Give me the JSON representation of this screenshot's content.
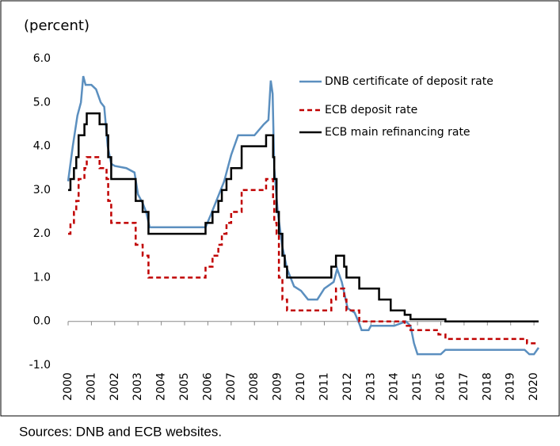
{
  "chart_data": {
    "type": "line",
    "step_series": [
      "ECB deposit rate",
      "ECB main refinancing rate"
    ],
    "y_label": "(percent)",
    "source": "Sources: DNB and ECB websites.",
    "legend": "upper right",
    "grid": false,
    "xlim": [
      2000,
      2020.2
    ],
    "xticks": [
      2000,
      2001,
      2002,
      2003,
      2004,
      2005,
      2006,
      2007,
      2008,
      2009,
      2010,
      2011,
      2012,
      2013,
      2014,
      2015,
      2016,
      2017,
      2018,
      2019,
      2020
    ],
    "ylim": [
      -1,
      6
    ],
    "yticks": [
      {
        "value": -1,
        "label": "-1.0"
      },
      {
        "value": 0,
        "label": "0.0"
      },
      {
        "value": 1,
        "label": "1.0"
      },
      {
        "value": 2,
        "label": "2.0"
      },
      {
        "value": 3,
        "label": "3.0"
      },
      {
        "value": 4,
        "label": "4.0"
      },
      {
        "value": 5,
        "label": "5.0"
      },
      {
        "value": 6,
        "label": "6.0"
      }
    ],
    "series": [
      {
        "name": "DNB certificate of deposit rate",
        "color": "#5b8fbf",
        "dash": "none",
        "x": [
          2000.0,
          2000.2,
          2000.4,
          2000.55,
          2000.65,
          2000.75,
          2001.0,
          2001.2,
          2001.4,
          2001.55,
          2001.7,
          2001.85,
          2002.0,
          2002.5,
          2002.85,
          2003.0,
          2003.2,
          2003.35,
          2003.5,
          2005.9,
          2006.1,
          2006.4,
          2006.7,
          2007.0,
          2007.3,
          2008.0,
          2008.4,
          2008.6,
          2008.7,
          2008.78,
          2008.85,
          2009.0,
          2009.2,
          2009.4,
          2009.7,
          2010.0,
          2010.3,
          2010.7,
          2011.0,
          2011.4,
          2011.55,
          2011.75,
          2012.0,
          2012.3,
          2012.5,
          2012.6,
          2012.9,
          2013.0,
          2014.0,
          2014.5,
          2014.7,
          2014.85,
          2015.0,
          2016.0,
          2016.2,
          2019.6,
          2019.8,
          2020.0,
          2020.2
        ],
        "values": [
          3.2,
          4.0,
          4.7,
          5.0,
          5.6,
          5.4,
          5.4,
          5.3,
          5.0,
          4.9,
          4.0,
          3.6,
          3.55,
          3.5,
          3.4,
          2.9,
          2.7,
          2.5,
          2.15,
          2.15,
          2.4,
          2.8,
          3.2,
          3.8,
          4.25,
          4.25,
          4.5,
          4.6,
          5.5,
          5.2,
          3.5,
          2.5,
          1.7,
          1.2,
          0.8,
          0.7,
          0.5,
          0.5,
          0.75,
          0.9,
          1.2,
          0.9,
          0.3,
          0.2,
          -0.05,
          -0.2,
          -0.2,
          -0.1,
          -0.1,
          0.0,
          -0.1,
          -0.5,
          -0.75,
          -0.75,
          -0.65,
          -0.65,
          -0.75,
          -0.75,
          -0.6
        ]
      },
      {
        "name": "ECB deposit rate",
        "color": "#c00000",
        "dash": "6 4",
        "x": [
          2000.0,
          2000.1,
          2000.25,
          2000.35,
          2000.45,
          2000.7,
          2000.8,
          2001.35,
          2001.65,
          2001.72,
          2001.85,
          2002.9,
          2003.2,
          2003.45,
          2005.9,
          2006.2,
          2006.45,
          2006.6,
          2006.8,
          2007.0,
          2007.45,
          2008.5,
          2008.8,
          2008.85,
          2008.95,
          2009.05,
          2009.2,
          2009.4,
          2011.3,
          2011.5,
          2011.85,
          2011.95,
          2012.5,
          2014.45,
          2014.7,
          2015.9,
          2016.2,
          2019.7,
          2020.2
        ],
        "values": [
          2.0,
          2.25,
          2.5,
          2.75,
          3.25,
          3.5,
          3.75,
          3.5,
          3.25,
          2.75,
          2.25,
          1.75,
          1.5,
          1.0,
          1.25,
          1.5,
          1.75,
          2.0,
          2.25,
          2.5,
          3.0,
          3.25,
          2.75,
          2.25,
          2.0,
          1.0,
          0.5,
          0.25,
          0.5,
          0.75,
          0.5,
          0.25,
          0.0,
          -0.1,
          -0.2,
          -0.3,
          -0.4,
          -0.5,
          -0.5
        ]
      },
      {
        "name": "ECB main refinancing rate",
        "color": "#000000",
        "dash": "none",
        "x": [
          2000.0,
          2000.1,
          2000.25,
          2000.35,
          2000.45,
          2000.7,
          2000.8,
          2001.35,
          2001.65,
          2001.72,
          2001.85,
          2002.9,
          2003.2,
          2003.45,
          2005.9,
          2006.2,
          2006.45,
          2006.6,
          2006.8,
          2007.0,
          2007.45,
          2008.5,
          2008.8,
          2008.85,
          2008.95,
          2009.05,
          2009.2,
          2009.3,
          2009.4,
          2011.3,
          2011.5,
          2011.85,
          2011.95,
          2012.5,
          2013.35,
          2013.85,
          2014.45,
          2014.7,
          2016.2,
          2020.2
        ],
        "values": [
          3.0,
          3.25,
          3.5,
          3.75,
          4.25,
          4.5,
          4.75,
          4.5,
          4.25,
          3.75,
          3.25,
          2.75,
          2.5,
          2.0,
          2.25,
          2.5,
          2.75,
          3.0,
          3.25,
          3.5,
          4.0,
          4.25,
          3.75,
          3.25,
          2.5,
          2.0,
          1.5,
          1.25,
          1.0,
          1.25,
          1.5,
          1.25,
          1.0,
          0.75,
          0.5,
          0.25,
          0.15,
          0.05,
          0.0,
          0.0
        ]
      }
    ]
  }
}
